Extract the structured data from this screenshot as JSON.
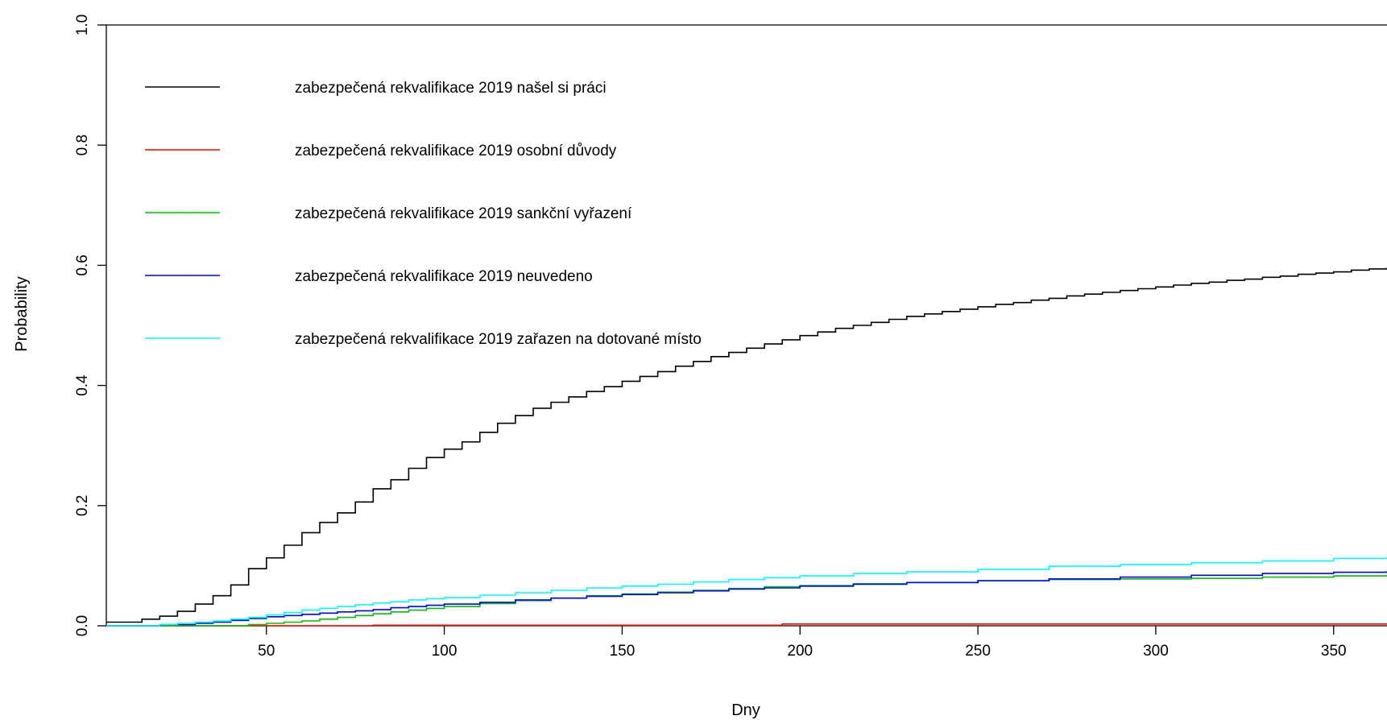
{
  "chart_data": {
    "type": "line",
    "title": "",
    "xlabel": "Dny",
    "ylabel": "Probability",
    "xlim": [
      5,
      365
    ],
    "ylim": [
      0,
      1.0
    ],
    "x_ticks": [
      50,
      100,
      150,
      200,
      250,
      300,
      350
    ],
    "y_ticks": [
      0.0,
      0.2,
      0.4,
      0.6,
      0.8,
      1.0
    ],
    "y_tick_labels": [
      "0.0",
      "0.2",
      "0.4",
      "0.6",
      "0.8",
      "1.0"
    ],
    "grid": false,
    "step": true,
    "legend_position": "top-left",
    "series": [
      {
        "name": "zabezpečená rekvalifikace 2019 našel si práci",
        "color": "#000000",
        "points": [
          [
            5,
            0.006
          ],
          [
            15,
            0.006
          ],
          [
            15,
            0.011
          ],
          [
            20,
            0.016
          ],
          [
            25,
            0.024
          ],
          [
            30,
            0.036
          ],
          [
            35,
            0.05
          ],
          [
            40,
            0.068
          ],
          [
            45,
            0.095
          ],
          [
            50,
            0.113
          ],
          [
            55,
            0.134
          ],
          [
            60,
            0.155
          ],
          [
            65,
            0.172
          ],
          [
            70,
            0.188
          ],
          [
            75,
            0.206
          ],
          [
            80,
            0.228
          ],
          [
            85,
            0.243
          ],
          [
            90,
            0.262
          ],
          [
            95,
            0.28
          ],
          [
            100,
            0.294
          ],
          [
            105,
            0.306
          ],
          [
            110,
            0.322
          ],
          [
            115,
            0.337
          ],
          [
            120,
            0.35
          ],
          [
            125,
            0.362
          ],
          [
            130,
            0.372
          ],
          [
            135,
            0.381
          ],
          [
            140,
            0.39
          ],
          [
            145,
            0.398
          ],
          [
            150,
            0.407
          ],
          [
            155,
            0.415
          ],
          [
            160,
            0.423
          ],
          [
            165,
            0.432
          ],
          [
            170,
            0.44
          ],
          [
            175,
            0.448
          ],
          [
            180,
            0.455
          ],
          [
            185,
            0.462
          ],
          [
            190,
            0.469
          ],
          [
            195,
            0.476
          ],
          [
            200,
            0.483
          ],
          [
            205,
            0.489
          ],
          [
            210,
            0.495
          ],
          [
            215,
            0.5
          ],
          [
            220,
            0.505
          ],
          [
            225,
            0.51
          ],
          [
            230,
            0.515
          ],
          [
            235,
            0.519
          ],
          [
            240,
            0.523
          ],
          [
            245,
            0.527
          ],
          [
            250,
            0.531
          ],
          [
            255,
            0.535
          ],
          [
            260,
            0.538
          ],
          [
            265,
            0.542
          ],
          [
            270,
            0.545
          ],
          [
            275,
            0.549
          ],
          [
            280,
            0.552
          ],
          [
            285,
            0.555
          ],
          [
            290,
            0.558
          ],
          [
            295,
            0.561
          ],
          [
            300,
            0.564
          ],
          [
            305,
            0.567
          ],
          [
            310,
            0.57
          ],
          [
            315,
            0.572
          ],
          [
            320,
            0.575
          ],
          [
            325,
            0.577
          ],
          [
            330,
            0.58
          ],
          [
            335,
            0.582
          ],
          [
            340,
            0.585
          ],
          [
            345,
            0.587
          ],
          [
            350,
            0.589
          ],
          [
            355,
            0.592
          ],
          [
            360,
            0.594
          ],
          [
            365,
            0.596
          ]
        ]
      },
      {
        "name": "zabezpečená rekvalifikace 2019 osobní důvody",
        "color": "#ff0000",
        "points": [
          [
            5,
            0.0
          ],
          [
            80,
            0.0
          ],
          [
            80,
            0.001
          ],
          [
            195,
            0.001
          ],
          [
            195,
            0.003
          ],
          [
            365,
            0.003
          ]
        ]
      },
      {
        "name": "zabezpečená rekvalifikace 2019 sankční vyřazení",
        "color": "#00c000",
        "points": [
          [
            5,
            0.0
          ],
          [
            40,
            0.0
          ],
          [
            45,
            0.002
          ],
          [
            50,
            0.004
          ],
          [
            55,
            0.006
          ],
          [
            60,
            0.008
          ],
          [
            65,
            0.011
          ],
          [
            70,
            0.014
          ],
          [
            75,
            0.017
          ],
          [
            80,
            0.02
          ],
          [
            85,
            0.023
          ],
          [
            90,
            0.026
          ],
          [
            95,
            0.029
          ],
          [
            100,
            0.032
          ],
          [
            110,
            0.037
          ],
          [
            120,
            0.042
          ],
          [
            130,
            0.046
          ],
          [
            140,
            0.05
          ],
          [
            150,
            0.053
          ],
          [
            160,
            0.056
          ],
          [
            170,
            0.059
          ],
          [
            180,
            0.062
          ],
          [
            190,
            0.065
          ],
          [
            200,
            0.067
          ],
          [
            215,
            0.07
          ],
          [
            230,
            0.072
          ],
          [
            250,
            0.075
          ],
          [
            270,
            0.077
          ],
          [
            290,
            0.078
          ],
          [
            310,
            0.079
          ],
          [
            330,
            0.081
          ],
          [
            350,
            0.083
          ],
          [
            365,
            0.085
          ]
        ]
      },
      {
        "name": "zabezpečená rekvalifikace 2019 neuvedeno",
        "color": "#0000ff",
        "points": [
          [
            5,
            0.0
          ],
          [
            15,
            0.0
          ],
          [
            20,
            0.002
          ],
          [
            30,
            0.004
          ],
          [
            35,
            0.006
          ],
          [
            40,
            0.009
          ],
          [
            45,
            0.012
          ],
          [
            50,
            0.015
          ],
          [
            55,
            0.017
          ],
          [
            60,
            0.019
          ],
          [
            65,
            0.021
          ],
          [
            70,
            0.023
          ],
          [
            75,
            0.025
          ],
          [
            80,
            0.027
          ],
          [
            85,
            0.03
          ],
          [
            90,
            0.032
          ],
          [
            95,
            0.034
          ],
          [
            100,
            0.036
          ],
          [
            110,
            0.039
          ],
          [
            120,
            0.043
          ],
          [
            130,
            0.046
          ],
          [
            140,
            0.049
          ],
          [
            150,
            0.052
          ],
          [
            160,
            0.055
          ],
          [
            170,
            0.058
          ],
          [
            180,
            0.061
          ],
          [
            190,
            0.063
          ],
          [
            200,
            0.066
          ],
          [
            215,
            0.069
          ],
          [
            230,
            0.072
          ],
          [
            250,
            0.075
          ],
          [
            270,
            0.078
          ],
          [
            290,
            0.081
          ],
          [
            310,
            0.084
          ],
          [
            330,
            0.087
          ],
          [
            350,
            0.089
          ],
          [
            365,
            0.091
          ]
        ]
      },
      {
        "name": "zabezpečená rekvalifikace 2019 zařazen na dotované místo",
        "color": "#00ffff",
        "points": [
          [
            5,
            0.0
          ],
          [
            15,
            0.0
          ],
          [
            20,
            0.002
          ],
          [
            25,
            0.004
          ],
          [
            30,
            0.006
          ],
          [
            35,
            0.008
          ],
          [
            40,
            0.011
          ],
          [
            45,
            0.014
          ],
          [
            50,
            0.018
          ],
          [
            55,
            0.022
          ],
          [
            60,
            0.026
          ],
          [
            65,
            0.029
          ],
          [
            70,
            0.032
          ],
          [
            75,
            0.035
          ],
          [
            80,
            0.038
          ],
          [
            85,
            0.04
          ],
          [
            90,
            0.043
          ],
          [
            95,
            0.045
          ],
          [
            100,
            0.047
          ],
          [
            110,
            0.051
          ],
          [
            120,
            0.055
          ],
          [
            130,
            0.059
          ],
          [
            140,
            0.063
          ],
          [
            150,
            0.066
          ],
          [
            160,
            0.069
          ],
          [
            170,
            0.073
          ],
          [
            180,
            0.077
          ],
          [
            190,
            0.08
          ],
          [
            200,
            0.083
          ],
          [
            215,
            0.087
          ],
          [
            230,
            0.09
          ],
          [
            250,
            0.094
          ],
          [
            270,
            0.099
          ],
          [
            290,
            0.102
          ],
          [
            310,
            0.105
          ],
          [
            330,
            0.108
          ],
          [
            350,
            0.112
          ],
          [
            365,
            0.116
          ]
        ]
      }
    ]
  }
}
